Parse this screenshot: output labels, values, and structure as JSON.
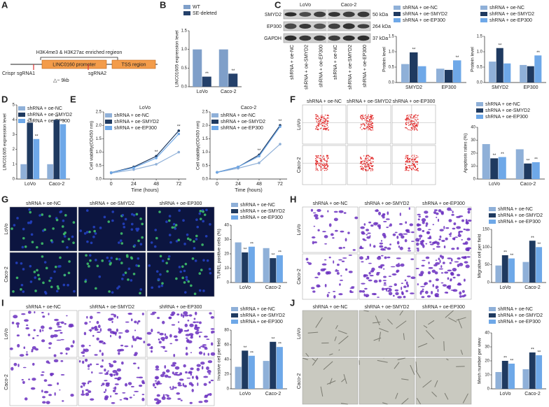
{
  "figure": {
    "panel_labels": [
      "A",
      "B",
      "C",
      "D",
      "E",
      "F",
      "G",
      "H",
      "I",
      "J"
    ],
    "diagram": {
      "enriched": "H3K4me3 & H3K27ac enriched regieon",
      "promoter": "LINC0160 promoter",
      "tss": "TSS region",
      "crispr": "Crispr",
      "sgrna1": "sgRNA1",
      "sgrna2": "sgRNA2",
      "deletion": "△~ 9kb"
    },
    "blot": {
      "cell_lines": [
        "LoVo",
        "Caco-2"
      ],
      "proteins": [
        "SMYD2",
        "EP300",
        "GAPDH"
      ],
      "sizes": [
        "50 kDa",
        "264 kDa",
        "37 kDa"
      ],
      "lanes": [
        "shRNA + oe-NC",
        "shRNA + oe-SMYD2",
        "shRNA + oe-EP300"
      ]
    },
    "image_panels": [
      {
        "columns": [
          "shRNA + oe-NC",
          "shRNA + oe-SMYD2",
          "shRNA + oe-EP300"
        ],
        "rows": [
          "LoVo",
          "Caco-2"
        ]
      },
      {
        "columns": [
          "shRNA + oe-NC",
          "shRNA + oe-SMYD2",
          "shRNA + oe-EP300"
        ],
        "rows": [
          "LoVo",
          "Caco-2"
        ]
      },
      {
        "columns": [
          "shRNA + oe-NC",
          "shRNA + oe-SMYD2",
          "shRNA + oe-EP300"
        ],
        "rows": [
          "LoVo",
          "Caco-2"
        ]
      },
      {
        "columns": [
          "shRNA + oe-NC",
          "shRNA + oe-SMYD2",
          "shRNA + oe-EP300"
        ],
        "rows": [
          "LoVo",
          "Caco-2"
        ]
      },
      {
        "columns": [
          "shRNA + oe-NC",
          "shRNA + oe-SMYD2",
          "shRNA + oe-EP300"
        ],
        "rows": [
          "LoVo",
          "Caco-2"
        ]
      }
    ]
  },
  "chart_data": [
    {
      "type": "bar",
      "ylabel": "LINC01605 expression level",
      "categories": [
        "LoVo",
        "Caco-2"
      ],
      "ylim": [
        0,
        1.5
      ],
      "yticks": [
        {
          "value": 0,
          "label": "0.0"
        },
        {
          "value": 0.5,
          "label": "0.5"
        },
        {
          "value": 1,
          "label": "1.0"
        },
        {
          "value": 1.5,
          "label": "1.5"
        }
      ],
      "series": [
        {
          "name": "WT",
          "color": "#7f9fc9",
          "values": [
            1,
            1
          ]
        },
        {
          "name": "SE-deleted",
          "color": "#24406a",
          "values": [
            0.27,
            0.35
          ],
          "significance": [
            "**",
            "**"
          ]
        }
      ]
    },
    {
      "type": "bar",
      "ylabel": "Protein level",
      "categories": [
        "SMYD2",
        "EP300"
      ],
      "ylim": [
        0,
        1.5
      ],
      "yticks": [
        {
          "value": 0,
          "label": "0.0"
        },
        {
          "value": 0.5,
          "label": "0.5"
        },
        {
          "value": 1,
          "label": "1.0"
        },
        {
          "value": 1.5,
          "label": "1.5"
        }
      ],
      "series": [
        {
          "name": "shRNA + oe-NC",
          "color": "#8fb0d8",
          "values": [
            0.6,
            0.45
          ]
        },
        {
          "name": "shRNA + oe-SMYD2",
          "color": "#1f3a60",
          "values": [
            0.98,
            0.41
          ],
          "significance": [
            "**",
            null
          ]
        },
        {
          "name": "shRNA + oe-EP300",
          "color": "#6ea8e8",
          "values": [
            0.53,
            0.72
          ],
          "significance": [
            null,
            "**"
          ]
        }
      ]
    },
    {
      "type": "bar",
      "ylabel": "Protein level",
      "categories": [
        "SMYD2",
        "EP300"
      ],
      "ylim": [
        0,
        1.5
      ],
      "yticks": [
        {
          "value": 0,
          "label": "0.0"
        },
        {
          "value": 0.5,
          "label": "0.5"
        },
        {
          "value": 1,
          "label": "1.0"
        },
        {
          "value": 1.5,
          "label": "1.5"
        }
      ],
      "series": [
        {
          "name": "shRNA + oe-NC",
          "color": "#8fb0d8",
          "values": [
            0.68,
            0.57
          ]
        },
        {
          "name": "shRNA + oe-SMYD2",
          "color": "#1f3a60",
          "values": [
            1.12,
            0.53
          ],
          "significance": [
            "**",
            null
          ]
        },
        {
          "name": "shRNA + oe-EP300",
          "color": "#6ea8e8",
          "values": [
            0.62,
            0.88
          ],
          "significance": [
            null,
            "**"
          ]
        }
      ]
    },
    {
      "type": "bar",
      "ylabel": "LINC01605 expression level",
      "categories": [
        "LoVo",
        "Caco-2"
      ],
      "ylim": [
        0,
        5
      ],
      "yticks": [
        0,
        1,
        2,
        3,
        4,
        5
      ],
      "series": [
        {
          "name": "shRNA + oe-NC",
          "color": "#8fb0d8",
          "values": [
            1,
            1
          ]
        },
        {
          "name": "shRNA + oe-SMYD2",
          "color": "#1f3a60",
          "values": [
            3.8,
            4.0
          ],
          "significance": [
            "**",
            "**"
          ]
        },
        {
          "name": "shRNA + oe-EP300",
          "color": "#6ea8e8",
          "values": [
            2.7,
            3.7
          ],
          "significance": [
            "**",
            "**"
          ]
        }
      ]
    },
    {
      "type": "line",
      "title": "LoVo",
      "xlabel": "Time (hours)",
      "ylabel": "Cell viability(OD450 nm)",
      "x": [
        0,
        24,
        48,
        72
      ],
      "xlim": [
        -8,
        80
      ],
      "xticks": [
        0,
        24,
        48,
        72
      ],
      "ylim": [
        0,
        2.5
      ],
      "yticks": [
        {
          "value": 0,
          "label": "0.0"
        },
        {
          "value": 0.5,
          "label": "0.5"
        },
        {
          "value": 1,
          "label": "1.0"
        },
        {
          "value": 1.5,
          "label": "1.5"
        },
        {
          "value": 2,
          "label": "2.0"
        },
        {
          "value": 2.5,
          "label": "2.5"
        }
      ],
      "series": [
        {
          "name": "shRNA + oe-NC",
          "color": "#8fb0d8",
          "values": [
            0.22,
            0.35,
            0.55,
            1.0
          ]
        },
        {
          "name": "shRNA + oe-SMYD2",
          "color": "#1f3a60",
          "values": [
            0.24,
            0.45,
            0.85,
            1.8
          ],
          "significance": [
            null,
            null,
            "**",
            "**"
          ]
        },
        {
          "name": "shRNA + oe-EP300",
          "color": "#6ea8e8",
          "values": [
            0.24,
            0.42,
            0.78,
            1.68
          ]
        }
      ]
    },
    {
      "type": "line",
      "title": "Caco-2",
      "xlabel": "Time (hours)",
      "ylabel": "Cell viability(OD450 nm)",
      "x": [
        0,
        24,
        48,
        72
      ],
      "xlim": [
        -8,
        80
      ],
      "xticks": [
        0,
        24,
        48,
        72
      ],
      "ylim": [
        0,
        2.5
      ],
      "yticks": [
        {
          "value": 0,
          "label": "0.0"
        },
        {
          "value": 0.5,
          "label": "0.5"
        },
        {
          "value": 1,
          "label": "1.0"
        },
        {
          "value": 1.5,
          "label": "1.5"
        },
        {
          "value": 2,
          "label": "2.0"
        },
        {
          "value": 2.5,
          "label": "2.5"
        }
      ],
      "series": [
        {
          "name": "shRNA + oe-NC",
          "color": "#8fb0d8",
          "values": [
            0.25,
            0.4,
            0.6,
            1.3
          ]
        },
        {
          "name": "shRNA + oe-SMYD2",
          "color": "#1f3a60",
          "values": [
            0.25,
            0.45,
            0.9,
            2.0
          ],
          "significance": [
            null,
            null,
            "**",
            "**"
          ]
        },
        {
          "name": "shRNA + oe-EP300",
          "color": "#6ea8e8",
          "values": [
            0.25,
            0.45,
            0.85,
            1.95
          ]
        }
      ]
    },
    {
      "type": "bar",
      "ylabel": "Apoptosis rates (%)",
      "categories": [
        "LoVo",
        "Caco-2"
      ],
      "ylim": [
        0,
        40
      ],
      "yticks": [
        0,
        10,
        20,
        30,
        40
      ],
      "series": [
        {
          "name": "shRNA + oe-NC",
          "color": "#8fb0d8",
          "values": [
            27,
            23
          ]
        },
        {
          "name": "shRNA + oe-SMYD2",
          "color": "#1f3a60",
          "values": [
            16,
            12
          ],
          "significance": [
            "**",
            "**"
          ]
        },
        {
          "name": "shRNA + oe-EP300",
          "color": "#6ea8e8",
          "values": [
            17,
            13
          ],
          "significance": [
            "**",
            "**"
          ]
        }
      ]
    },
    {
      "type": "bar",
      "ylabel": "TUNEL positive cells (%)",
      "categories": [
        "LoVo",
        "Caco-2"
      ],
      "ylim": [
        0,
        40
      ],
      "yticks": [
        0,
        10,
        20,
        30,
        40
      ],
      "series": [
        {
          "name": "shRNA + oe-NC",
          "color": "#8fb0d8",
          "values": [
            28,
            24
          ]
        },
        {
          "name": "shRNA + oe-SMYD2",
          "color": "#1f3a60",
          "values": [
            21,
            17
          ],
          "significance": [
            "**",
            "**"
          ]
        },
        {
          "name": "shRNA + oe-EP300",
          "color": "#6ea8e8",
          "values": [
            25,
            19
          ],
          "significance": [
            "**",
            "**"
          ]
        }
      ]
    },
    {
      "type": "bar",
      "ylabel": "Migrative cell per field",
      "categories": [
        "LoVo",
        "Caco-2"
      ],
      "ylim": [
        0,
        150
      ],
      "yticks": [
        0,
        50,
        100,
        150
      ],
      "series": [
        {
          "name": "shRNA + oe-NC",
          "color": "#8fb0d8",
          "values": [
            48,
            58
          ]
        },
        {
          "name": "shRNA + oe-SMYD2",
          "color": "#1f3a60",
          "values": [
            77,
            118
          ],
          "significance": [
            "**",
            "**"
          ]
        },
        {
          "name": "shRNA + oe-EP300",
          "color": "#6ea8e8",
          "values": [
            68,
            100
          ],
          "significance": [
            "**",
            "**"
          ]
        }
      ]
    },
    {
      "type": "bar",
      "ylabel": "Invasive cell per field",
      "categories": [
        "LoVo",
        "Caco-2"
      ],
      "ylim": [
        0,
        80
      ],
      "yticks": [
        0,
        20,
        40,
        60,
        80
      ],
      "series": [
        {
          "name": "shRNA + oe-NC",
          "color": "#8fb0d8",
          "values": [
            30,
            38
          ]
        },
        {
          "name": "shRNA + oe-SMYD2",
          "color": "#1f3a60",
          "values": [
            52,
            64
          ],
          "significance": [
            "**",
            "**"
          ]
        },
        {
          "name": "shRNA + oe-EP300",
          "color": "#6ea8e8",
          "values": [
            45,
            57
          ],
          "significance": [
            "**",
            "**"
          ]
        }
      ]
    },
    {
      "type": "bar",
      "ylabel": "Mesh number per view",
      "categories": [
        "LoVo",
        "Caco-2"
      ],
      "ylim": [
        0,
        40
      ],
      "yticks": [
        0,
        10,
        20,
        30,
        40
      ],
      "series": [
        {
          "name": "shRNA + oe-NC",
          "color": "#8fb0d8",
          "values": [
            12,
            14
          ]
        },
        {
          "name": "shRNA + oe-SMYD2",
          "color": "#1f3a60",
          "values": [
            20,
            26
          ],
          "significance": [
            "**",
            "**"
          ]
        },
        {
          "name": "shRNA + oe-EP300",
          "color": "#6ea8e8",
          "values": [
            18,
            24
          ],
          "significance": [
            "**",
            "**"
          ]
        }
      ]
    }
  ]
}
